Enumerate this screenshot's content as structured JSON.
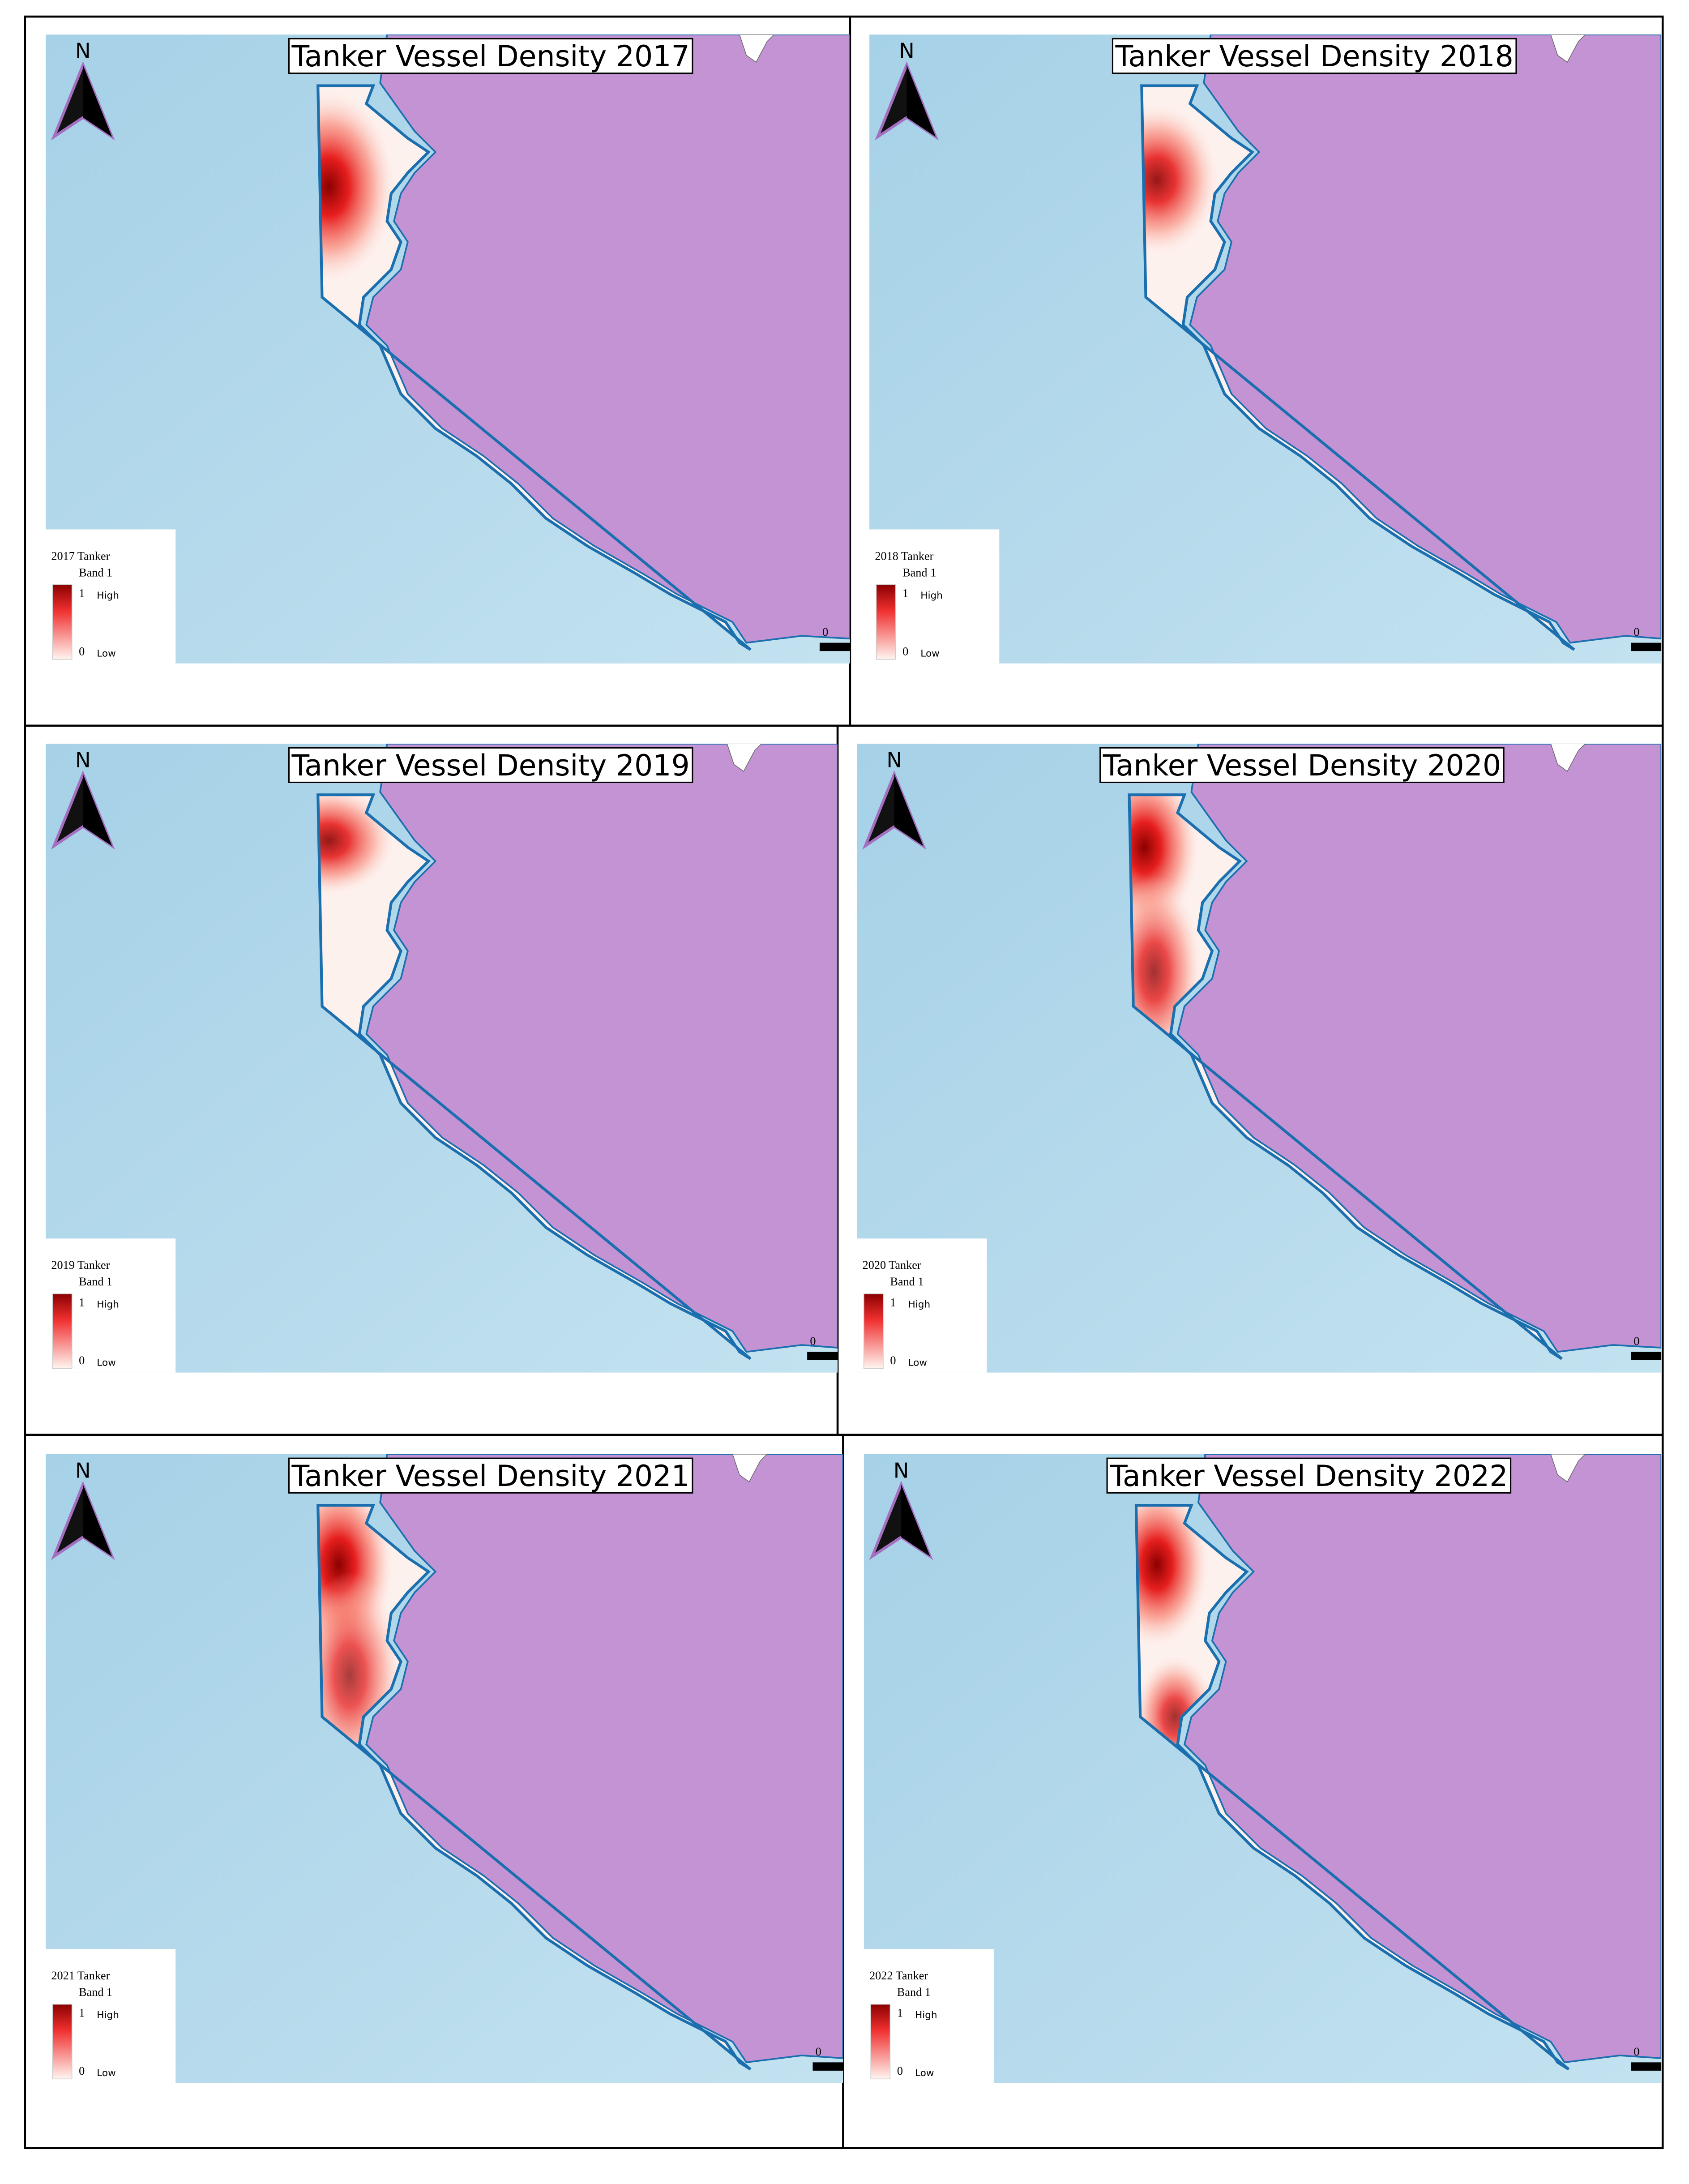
{
  "panels": [
    {
      "title": "Tanker Vessel Density 2017",
      "north": "N",
      "legend": {
        "title": "2017 Tanker",
        "band": "Band 1",
        "max": "1",
        "max_label": "High",
        "min": "0",
        "min_label": "Low"
      },
      "scale_label": "0"
    },
    {
      "title": "Tanker Vessel Density 2018",
      "north": "N",
      "legend": {
        "title": "2018 Tanker",
        "band": "Band 1",
        "max": "1",
        "max_label": "High",
        "min": "0",
        "min_label": "Low"
      },
      "scale_label": "0"
    },
    {
      "title": "Tanker Vessel Density 2019",
      "north": "N",
      "legend": {
        "title": "2019 Tanker",
        "band": "Band 1",
        "max": "1",
        "max_label": "High",
        "min": "0",
        "min_label": "Low"
      },
      "scale_label": "0"
    },
    {
      "title": "Tanker Vessel Density 2020",
      "north": "N",
      "legend": {
        "title": "2020 Tanker",
        "band": "Band 1",
        "max": "1",
        "max_label": "High",
        "min": "0",
        "min_label": "Low"
      },
      "scale_label": "0"
    },
    {
      "title": "Tanker Vessel Density 2021",
      "north": "N",
      "legend": {
        "title": "2021 Tanker",
        "band": "Band 1",
        "max": "1",
        "max_label": "High",
        "min": "0",
        "min_label": "Low"
      },
      "scale_label": "0"
    },
    {
      "title": "Tanker Vessel Density 2022",
      "north": "N",
      "legend": {
        "title": "2022 Tanker",
        "band": "Band 1",
        "max": "1",
        "max_label": "High",
        "min": "0",
        "min_label": "Low"
      },
      "scale_label": "0"
    }
  ]
}
